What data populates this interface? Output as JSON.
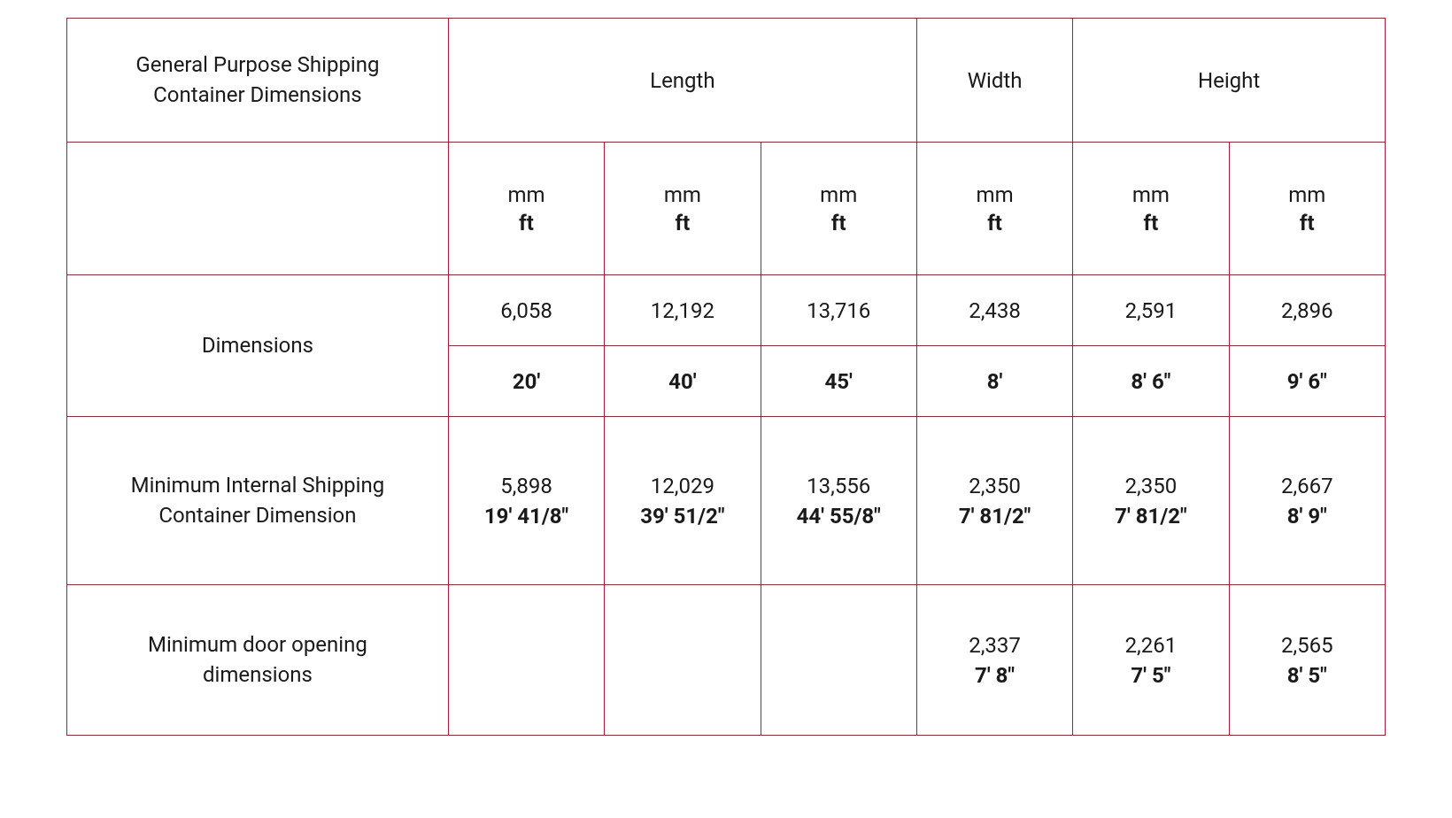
{
  "table": {
    "border_color": "#c8102e",
    "background_color": "#ffffff",
    "text_color": "#1a1a1a",
    "font_size": 24,
    "headers": {
      "title": "General Purpose Shipping Container Dimensions",
      "length": "Length",
      "width": "Width",
      "height": "Height"
    },
    "unit_labels": {
      "mm": "mm",
      "ft": "ft"
    },
    "row_labels": {
      "dimensions": "Dimensions",
      "internal": "Minimum Internal Shipping Container Dimension",
      "door": "Minimum door opening dimensions"
    },
    "dimensions": {
      "mm": [
        "6,058",
        "12,192",
        "13,716",
        "2,438",
        "2,591",
        "2,896"
      ],
      "ft": [
        "20'",
        "40'",
        "45'",
        "8'",
        "8' 6\"",
        "9' 6\""
      ]
    },
    "internal": {
      "mm": [
        "5,898",
        "12,029",
        "13,556",
        "2,350",
        "2,350",
        "2,667"
      ],
      "ft": [
        "19' 41/8\"",
        "39' 51/2\"",
        "44' 55/8\"",
        "7' 81/2\"",
        "7' 81/2\"",
        "8' 9\""
      ]
    },
    "door": {
      "mm": [
        "",
        "",
        "",
        "2,337",
        "2,261",
        "2,565"
      ],
      "ft": [
        "",
        "",
        "",
        "7' 8\"",
        "7' 5\"",
        "8' 5\""
      ]
    }
  }
}
